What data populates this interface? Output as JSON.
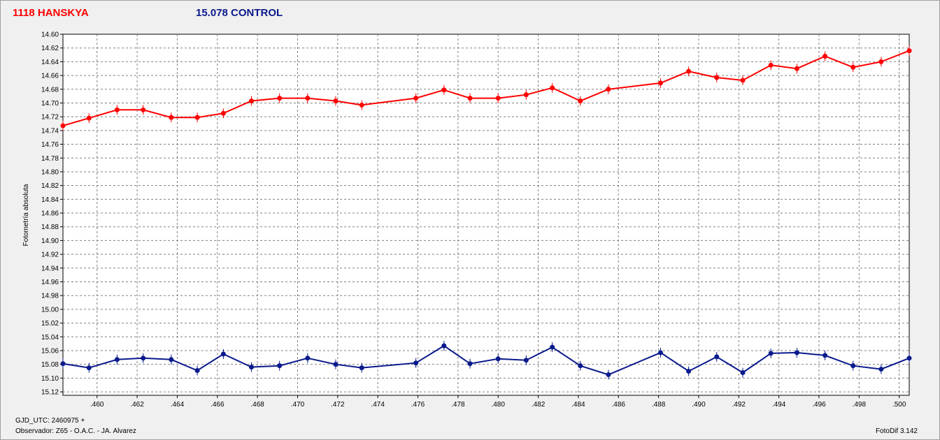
{
  "header": {
    "target_label": "1118 HANSKYA",
    "control_label": "15.078 CONTROL"
  },
  "footer": {
    "gjd": "GJD_UTC: 2460975 +",
    "observer": "Observador: Z65 - O.A.C. - JA. Alvarez",
    "software": "FotoDif 3.142"
  },
  "chart_data": {
    "type": "line",
    "title": "",
    "xlabel": "",
    "ylabel": "Fotometría absoluta",
    "xlim": [
      0.4583,
      0.5005
    ],
    "ylim": [
      14.6,
      15.125
    ],
    "y_inverted": true,
    "grid": true,
    "x_ticks": [
      ".460",
      ".462",
      ".464",
      ".466",
      ".468",
      ".470",
      ".472",
      ".474",
      ".476",
      ".478",
      ".480",
      ".482",
      ".484",
      ".486",
      ".488",
      ".490",
      ".492",
      ".494",
      ".496",
      ".498",
      ".500"
    ],
    "y_ticks": [
      "14.60",
      "14.62",
      "14.64",
      "14.66",
      "14.68",
      "14.70",
      "14.72",
      "14.74",
      "14.76",
      "14.78",
      "14.80",
      "14.82",
      "14.84",
      "14.86",
      "14.88",
      "14.90",
      "14.92",
      "14.94",
      "14.96",
      "14.98",
      "15.00",
      "15.02",
      "15.04",
      "15.06",
      "15.08",
      "15.10",
      "15.12"
    ],
    "series": [
      {
        "name": "1118 HANSKYA",
        "color": "#ff0000",
        "x": [
          0.4583,
          0.4596,
          0.461,
          0.4623,
          0.4637,
          0.465,
          0.4663,
          0.4677,
          0.4691,
          0.4705,
          0.4719,
          0.4732,
          0.4759,
          0.4773,
          0.4786,
          0.48,
          0.4814,
          0.4827,
          0.4841,
          0.4855,
          0.4881,
          0.4895,
          0.4909,
          0.4922,
          0.4936,
          0.4949,
          0.4963,
          0.4977,
          0.4991,
          0.5005
        ],
        "y": [
          14.733,
          14.722,
          14.71,
          14.71,
          14.721,
          14.721,
          14.715,
          14.697,
          14.693,
          14.693,
          14.697,
          14.703,
          14.693,
          14.681,
          14.693,
          14.693,
          14.688,
          14.678,
          14.697,
          14.68,
          14.671,
          14.654,
          14.663,
          14.667,
          14.645,
          14.65,
          14.632,
          14.648,
          14.64,
          14.624
        ]
      },
      {
        "name": "15.078 CONTROL",
        "color": "#0a1a8c",
        "x": [
          0.4583,
          0.4596,
          0.461,
          0.4623,
          0.4637,
          0.465,
          0.4663,
          0.4677,
          0.4691,
          0.4705,
          0.4719,
          0.4732,
          0.4759,
          0.4773,
          0.4786,
          0.48,
          0.4814,
          0.4827,
          0.4841,
          0.4855,
          0.4881,
          0.4895,
          0.4909,
          0.4922,
          0.4936,
          0.4949,
          0.4963,
          0.4977,
          0.4991,
          0.5005
        ],
        "y": [
          15.079,
          15.085,
          15.073,
          15.071,
          15.073,
          15.089,
          15.065,
          15.084,
          15.082,
          15.071,
          15.08,
          15.085,
          15.078,
          15.053,
          15.079,
          15.072,
          15.074,
          15.055,
          15.082,
          15.095,
          15.063,
          15.09,
          15.069,
          15.092,
          15.064,
          15.063,
          15.067,
          15.082,
          15.087,
          15.071
        ]
      }
    ]
  }
}
